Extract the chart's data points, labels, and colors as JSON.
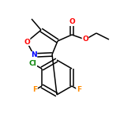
{
  "background_color": "#ffffff",
  "bond_color": "#000000",
  "atom_colors": {
    "O": "#ff0000",
    "N": "#0000ff",
    "F": "#ff8c00",
    "Cl": "#008000",
    "C": "#000000"
  },
  "figsize": [
    1.52,
    1.52
  ],
  "dpi": 100,
  "lw": 1.1,
  "fs": 6.5
}
